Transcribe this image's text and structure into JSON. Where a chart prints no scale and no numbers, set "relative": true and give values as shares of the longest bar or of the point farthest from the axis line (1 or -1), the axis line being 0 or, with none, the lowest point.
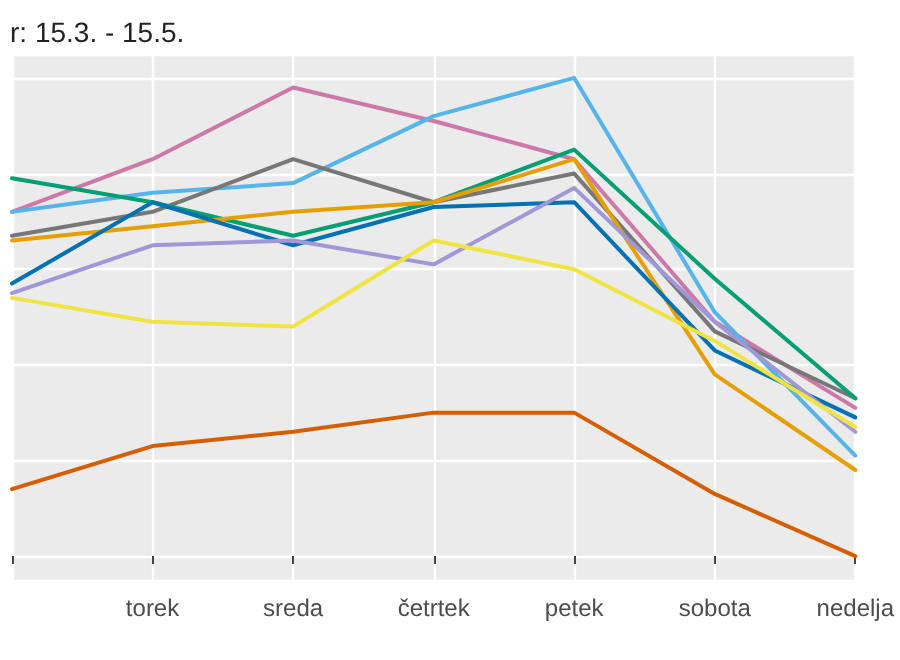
{
  "chart_data": {
    "type": "line",
    "title": "r: 15.3. - 15.5.",
    "relative": true,
    "grid": true,
    "marker": "none",
    "line_style": "solid",
    "categories": [
      null,
      "torek",
      "sreda",
      "četrtek",
      "petek",
      "sobota",
      "nedelja"
    ],
    "series": [
      {
        "color": "#cc79a7",
        "values": [
          0.72,
          0.83,
          0.98,
          0.91,
          0.83,
          0.49,
          0.31
        ]
      },
      {
        "color": "#56b4e9",
        "values": [
          0.72,
          0.76,
          0.78,
          0.92,
          1,
          0.51,
          0.21
        ]
      },
      {
        "color": "#777777",
        "values": [
          0.67,
          0.72,
          0.83,
          0.74,
          0.8,
          0.47,
          0.33
        ]
      },
      {
        "color": "#009e73",
        "values": [
          0.79,
          0.74,
          0.67,
          0.74,
          0.85,
          0.58,
          0.33
        ]
      },
      {
        "color": "#e69f00",
        "values": [
          0.66,
          0.69,
          0.72,
          0.74,
          0.83,
          0.38,
          0.18
        ]
      },
      {
        "color": "#0072b2",
        "values": [
          0.57,
          0.74,
          0.65,
          0.73,
          0.74,
          0.43,
          0.29
        ]
      },
      {
        "color": "#9f97d6",
        "values": [
          0.55,
          0.65,
          0.66,
          0.61,
          0.77,
          0.49,
          0.26
        ]
      },
      {
        "color": "#f0e442",
        "values": [
          0.54,
          0.49,
          0.48,
          0.66,
          0.6,
          0.45,
          0.27
        ]
      },
      {
        "color": "#d55e00",
        "values": [
          0.14,
          0.23,
          0.26,
          0.3,
          0.3,
          0.13,
          0
        ]
      }
    ]
  }
}
